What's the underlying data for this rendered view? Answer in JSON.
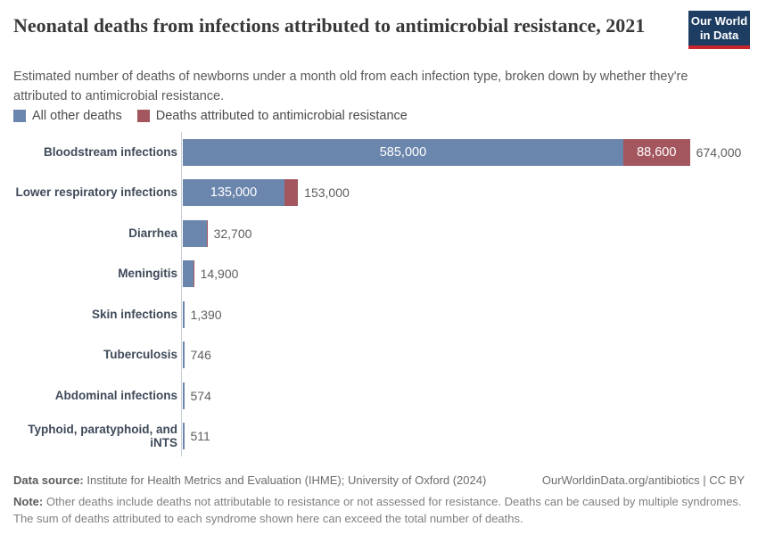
{
  "header": {
    "title": "Neonatal deaths from infections attributed to antimicrobial resistance, 2021",
    "subtitle": "Estimated number of deaths of newborns under a month old from each infection type, broken down by whether they're attributed to antimicrobial resistance.",
    "logo_line1": "Our World",
    "logo_line2": "in Data"
  },
  "legend": {
    "items": [
      {
        "key": "other",
        "label": "All other deaths",
        "color": "#6b86ad"
      },
      {
        "key": "amr",
        "label": "Deaths attributed to antimicrobial resistance",
        "color": "#a4565e"
      }
    ]
  },
  "chart_data": {
    "type": "bar",
    "orientation": "horizontal",
    "stacked": true,
    "title": "Neonatal deaths from infections attributed to antimicrobial resistance, 2021",
    "unit": "deaths",
    "axis_max": 674000,
    "grid": false,
    "legend_position": "top",
    "colors": {
      "other": "#6b86ad",
      "amr": "#a4565e"
    },
    "series_names": [
      "All other deaths",
      "Deaths attributed to antimicrobial resistance"
    ],
    "rows": [
      {
        "category": "Bloodstream infections",
        "other": 585000,
        "amr": 88600,
        "total": 674000,
        "other_label": "585,000",
        "amr_label": "88,600",
        "total_label": "674,000",
        "amr_tip": false
      },
      {
        "category": "Lower respiratory infections",
        "other": 135000,
        "amr": 18000,
        "total": 153000,
        "other_label": "135,000",
        "amr_label": null,
        "total_label": "153,000",
        "amr_tip": false
      },
      {
        "category": "Diarrhea",
        "other": null,
        "amr": null,
        "total": 32700,
        "other_label": null,
        "amr_label": null,
        "total_label": "32,700",
        "amr_tip": true
      },
      {
        "category": "Meningitis",
        "other": null,
        "amr": null,
        "total": 14900,
        "other_label": null,
        "amr_label": null,
        "total_label": "14,900",
        "amr_tip": true
      },
      {
        "category": "Skin infections",
        "other": null,
        "amr": null,
        "total": 1390,
        "other_label": null,
        "amr_label": null,
        "total_label": "1,390",
        "amr_tip": false
      },
      {
        "category": "Tuberculosis",
        "other": null,
        "amr": null,
        "total": 746,
        "other_label": null,
        "amr_label": null,
        "total_label": "746",
        "amr_tip": false
      },
      {
        "category": "Abdominal infections",
        "other": null,
        "amr": null,
        "total": 574,
        "other_label": null,
        "amr_label": null,
        "total_label": "574",
        "amr_tip": false
      },
      {
        "category": "Typhoid, paratyphoid, and iNTS",
        "other": null,
        "amr": null,
        "total": 511,
        "other_label": null,
        "amr_label": null,
        "total_label": "511",
        "amr_tip": false
      }
    ]
  },
  "footer": {
    "data_source_label": "Data source:",
    "data_source_value": " Institute for Health Metrics and Evaluation (IHME); University of Oxford (2024)",
    "link": "OurWorldinData.org/antibiotics | CC BY",
    "note_label": "Note:",
    "note_value": " Other deaths include deaths not attributable to resistance or not assessed for resistance. Deaths can be caused by multiple syndromes. The sum of deaths attributed to each syndrome shown here can exceed the total number of deaths."
  }
}
